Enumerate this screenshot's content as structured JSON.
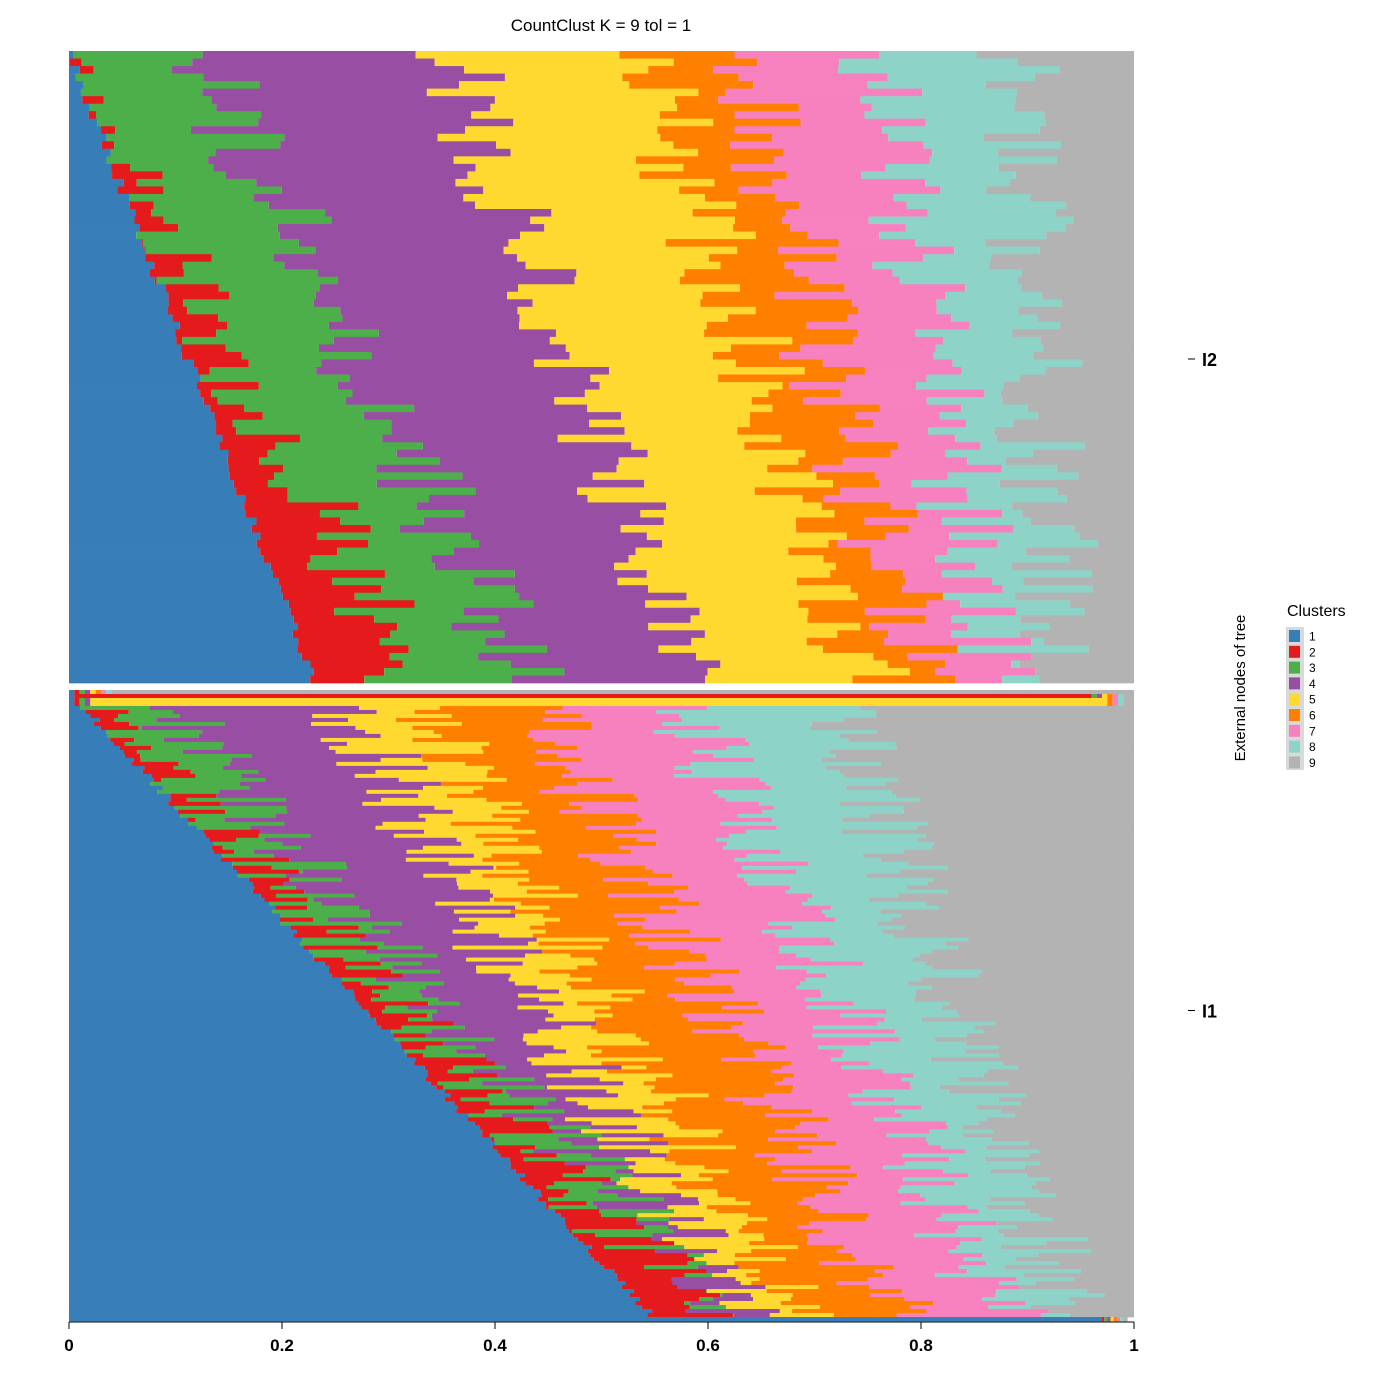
{
  "chart_data": {
    "type": "bar",
    "orientation": "horizontal-stacked",
    "title": "CountClust K =  9 tol =  1",
    "y_axis_label": "External nodes of tree",
    "xlim": [
      0,
      1
    ],
    "x_ticks": [
      "0",
      "0.2",
      "0.4",
      "0.6",
      "0.8",
      "1"
    ],
    "legend": {
      "title": "Clusters",
      "placement": "right",
      "entries": [
        "1",
        "2",
        "3",
        "4",
        "5",
        "6",
        "7",
        "8",
        "9"
      ]
    },
    "colors": [
      "#377eb8",
      "#e41a1c",
      "#4daf4a",
      "#984ea3",
      "#ffd92f",
      "#ff7f00",
      "#f781bf",
      "#8dd3c7",
      "#b3b3b3"
    ],
    "groups": [
      {
        "name": "I2",
        "bars": 84,
        "top_profile": [
          0.0,
          0.0,
          0.12,
          0.36,
          0.54,
          0.63,
          0.76,
          0.89,
          0.97,
          1.0
        ],
        "bottom_profile": [
          0.23,
          0.32,
          0.43,
          0.59,
          0.75,
          0.8,
          0.87,
          0.93,
          0.98,
          1.0
        ]
      },
      {
        "name": "I1",
        "bars": 158,
        "special_top_bars": 4,
        "top_profile": [
          0.0,
          0.005,
          0.08,
          0.25,
          0.32,
          0.43,
          0.57,
          0.72,
          0.82,
          1.0
        ],
        "bottom_profile": [
          0.55,
          0.6,
          0.62,
          0.63,
          0.69,
          0.78,
          0.88,
          0.94,
          0.96,
          1.0
        ],
        "last_bar": [
          0.97,
          0.972,
          0.975,
          0.978,
          0.981,
          0.984,
          0.987,
          0.99,
          0.994,
          1.0
        ]
      }
    ]
  }
}
